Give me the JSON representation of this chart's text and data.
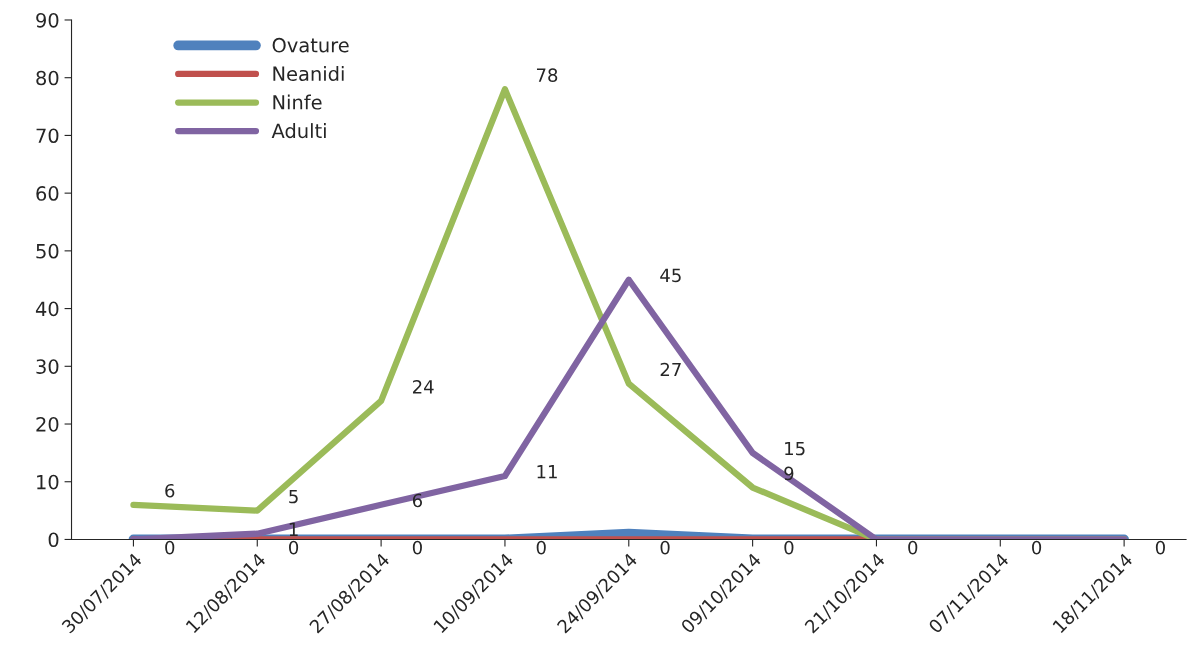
{
  "chart_data": {
    "type": "line",
    "categories": [
      "30/07/2014",
      "12/08/2014",
      "27/08/2014",
      "10/09/2014",
      "24/09/2014",
      "09/10/2014",
      "21/10/2014",
      "07/11/2014",
      "18/11/2014"
    ],
    "series": [
      {
        "name": "Ovature",
        "color": "#4f81bd",
        "values": [
          0,
          0,
          0,
          0,
          1,
          0,
          0,
          0,
          0
        ]
      },
      {
        "name": "Neanidi",
        "color": "#c0504d",
        "values": [
          0,
          0,
          0,
          0,
          0,
          0,
          0,
          0,
          0
        ],
        "value_labels": [
          "0",
          "0",
          "0",
          "0",
          "0",
          "0",
          "0",
          "0",
          "0"
        ]
      },
      {
        "name": "Ninfe",
        "color": "#9bbb59",
        "values": [
          6,
          5,
          24,
          78,
          27,
          9,
          0,
          0,
          0
        ],
        "value_labels": [
          "6",
          "5",
          "24",
          "78",
          "27",
          "9",
          null,
          null,
          null
        ]
      },
      {
        "name": "Adulti",
        "color": "#8064a2",
        "values": [
          0,
          1,
          6,
          11,
          45,
          15,
          0,
          0,
          0
        ],
        "value_labels": [
          null,
          "1",
          "6",
          "11",
          "45",
          "15",
          null,
          null,
          null
        ]
      }
    ],
    "ylim": [
      0,
      90
    ],
    "yticks": [
      0,
      10,
      20,
      30,
      40,
      50,
      60,
      70,
      80,
      90
    ],
    "grid": false,
    "legend": "top left",
    "marker": "none",
    "line_style": "solid"
  }
}
